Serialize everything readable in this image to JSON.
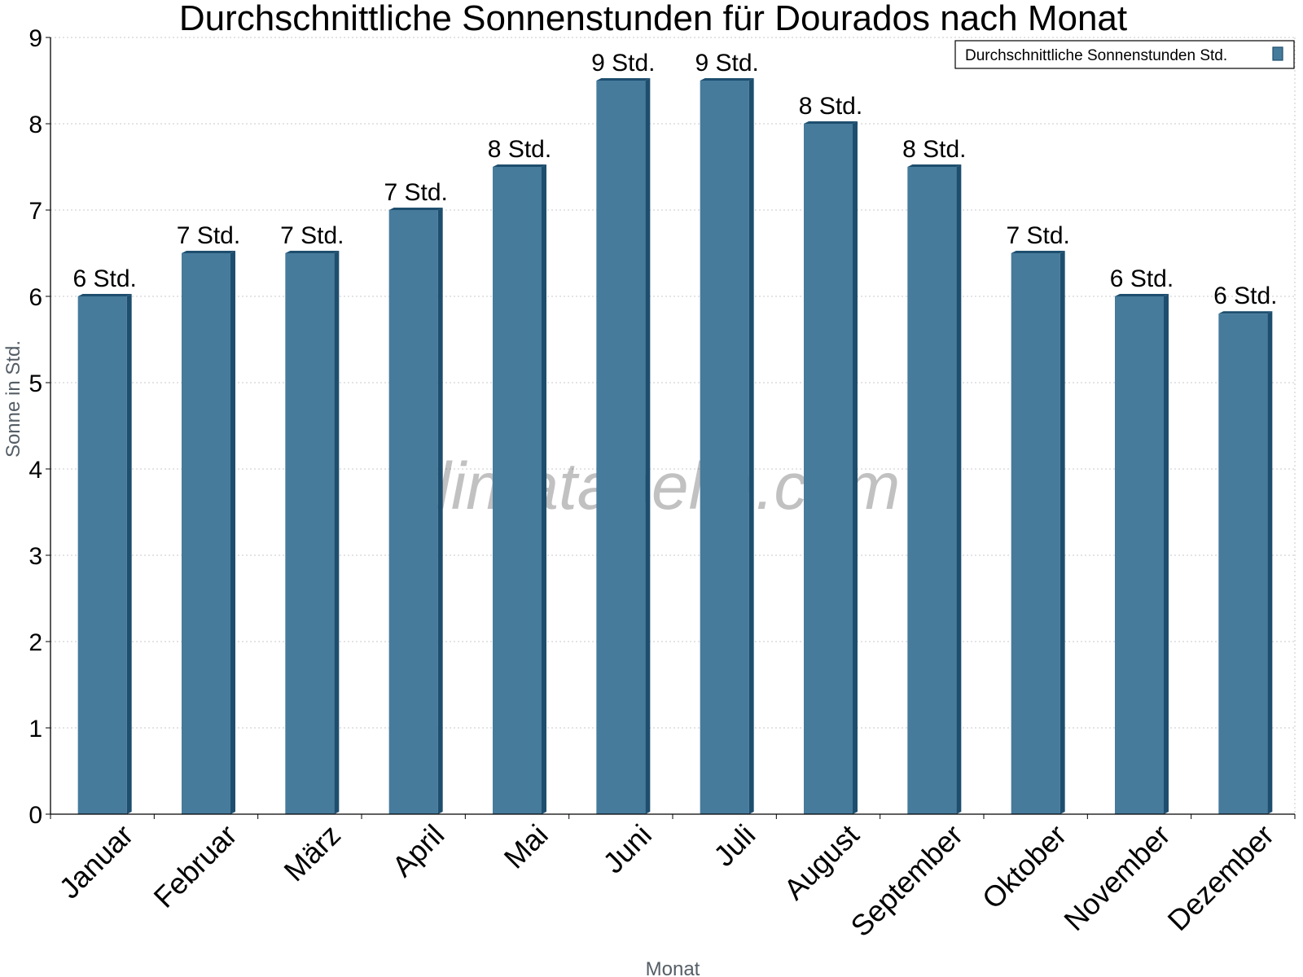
{
  "chart_data": {
    "type": "bar",
    "title": "Durchschnittliche Sonnenstunden für Dourados nach Monat",
    "xlabel": "Monat",
    "ylabel": "Sonne in Std.",
    "categories": [
      "Januar",
      "Februar",
      "März",
      "April",
      "Mai",
      "Juni",
      "Juli",
      "August",
      "September",
      "Oktober",
      "November",
      "Dezember"
    ],
    "series": [
      {
        "name": "Durchschnittliche Sonnenstunden Std.",
        "values": [
          6.0,
          6.5,
          6.5,
          7.0,
          7.5,
          8.5,
          8.5,
          8.0,
          7.5,
          6.5,
          6.0,
          5.8
        ],
        "data_labels": [
          "6 Std.",
          "7 Std.",
          "7 Std.",
          "7 Std.",
          "8 Std.",
          "9 Std.",
          "9 Std.",
          "8 Std.",
          "8 Std.",
          "7 Std.",
          "6 Std.",
          "6 Std."
        ]
      }
    ],
    "ylim": [
      0,
      9
    ],
    "yticks": [
      "0",
      "1",
      "2",
      "3",
      "4",
      "5",
      "6",
      "7",
      "8",
      "9"
    ],
    "grid": true,
    "legend_position": "top-right",
    "colors": {
      "bar": "#467b9c",
      "bar_side": "#1e4e6e",
      "grid": "#c8c8c8"
    },
    "watermark": "klimatabelle.com"
  }
}
